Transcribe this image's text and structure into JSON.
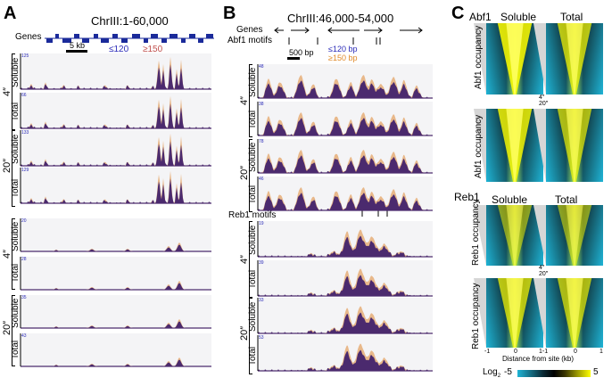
{
  "panelA": {
    "letter": "A",
    "coord": "ChrIII:1-60,000",
    "genes_label": "Genes",
    "scale": "5 kb",
    "legend_short": "≤120",
    "legend_short_unit": "bp",
    "legend_long": "≥150",
    "legend_long_unit": "bp",
    "time1": "4″",
    "time2": "20″",
    "soluble": "Soluble",
    "total": "Total",
    "max1": [
      "125",
      "66",
      "133",
      "129"
    ],
    "max2": [
      "20",
      "28",
      "35",
      "43"
    ]
  },
  "panelB": {
    "letter": "B",
    "coord": "ChrIII:46,000-54,000",
    "genes_label": "Genes",
    "abf1_motifs": "Abf1 motifs",
    "reb1_motifs": "Reb1 motifs",
    "scale": "500 bp",
    "legend_short": "≤120 bp",
    "legend_long": "≥150 bp",
    "time1": "4″",
    "time2": "20″",
    "soluble": "Soluble",
    "total": "Total",
    "max1": [
      "48",
      "38",
      "78",
      "46"
    ],
    "max2": [
      "19",
      "39",
      "33",
      "53"
    ]
  },
  "panelC": {
    "letter": "C",
    "abf1": "Abf1",
    "reb1": "Reb1",
    "soluble": "Soluble",
    "total": "Total",
    "abf1_occupancy": "Abf1 occupancy",
    "reb1_occupancy": "Reb1 occupancy",
    "time1": "4″",
    "time2": "20″",
    "xticks": [
      "-1",
      "0",
      "1-1",
      "0",
      "1"
    ],
    "xlabel": "Distance from site (kb)",
    "cbar_label": "Log",
    "cbar_sub": "2",
    "cbar_min": "-5",
    "cbar_max": "5"
  },
  "colors": {
    "short": "#2b2bb8",
    "long": "#e08a2a",
    "overlap": "#4b2a6e",
    "heat_high": "#ffff00",
    "heat_low": "#1fb4d6"
  }
}
